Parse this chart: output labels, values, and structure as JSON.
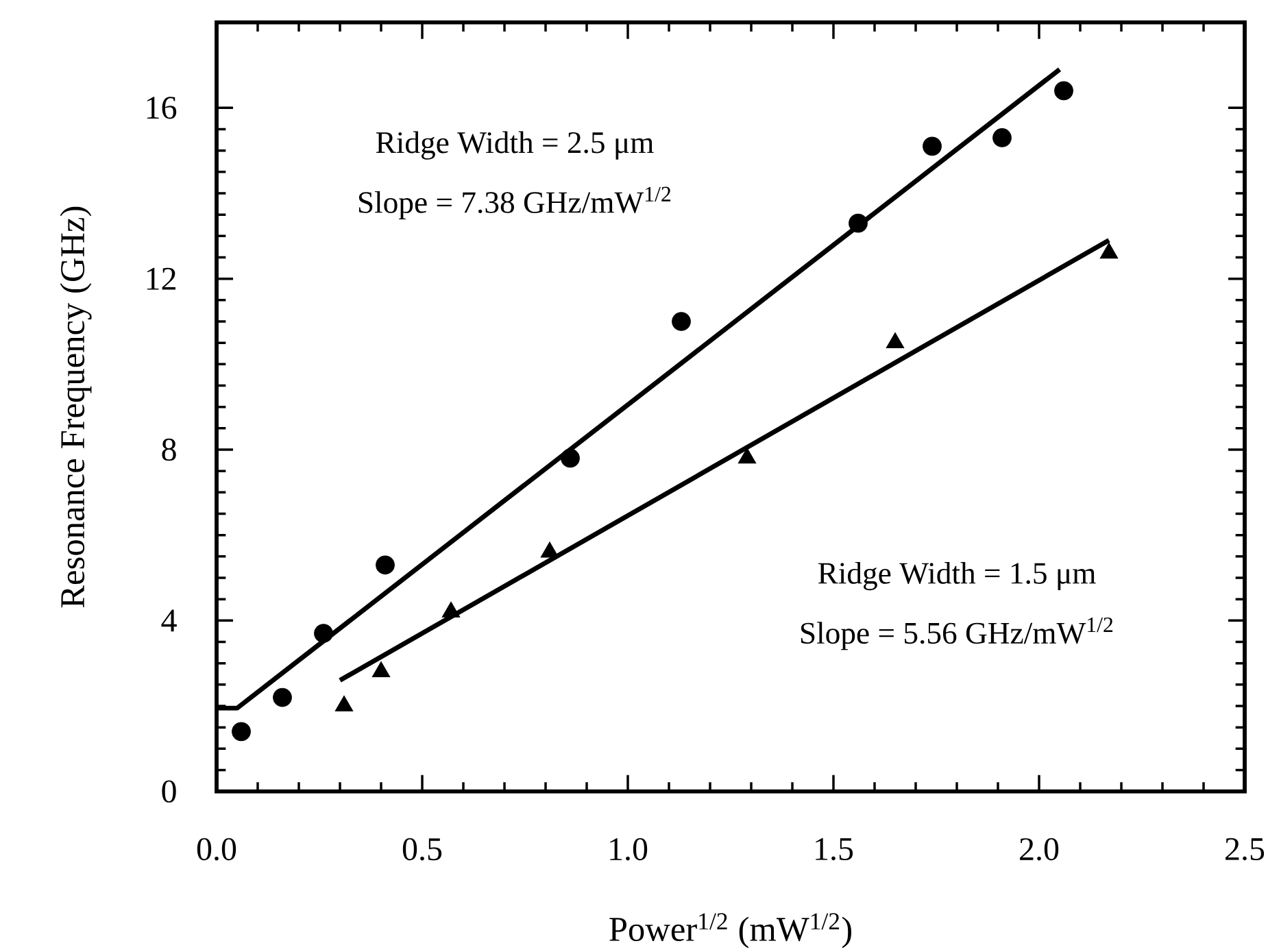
{
  "chart_data": {
    "type": "scatter",
    "xlabel": "Power$^{1/2}$ (mW$^{1/2}$)",
    "ylabel": "Resonance Frequency (GHz)",
    "xlim": [
      0,
      2.5
    ],
    "ylim": [
      0,
      18
    ],
    "xticks": [
      {
        "value": 0,
        "label": "0.0"
      },
      0.5,
      {
        "value": 1,
        "label": "1.0"
      },
      1.5,
      {
        "value": 2,
        "label": "2.0"
      },
      2.5
    ],
    "yticks": [
      0,
      4,
      8,
      12,
      16
    ],
    "grid": false,
    "annotations": [
      "Ridge Width = 2.5 μm",
      "Slope = 7.38 GHz/mW$^{1/2}$",
      "Ridge Width = 1.5 μm",
      "Slope = 5.56 GHz/mW$^{1/2}$"
    ],
    "series": [
      {
        "type": "scatter",
        "marker": "circle",
        "color": "#000000",
        "x": [
          0.06,
          0.16,
          0.26,
          0.41,
          0.86,
          1.13,
          1.56,
          1.74,
          1.91,
          2.06
        ],
        "values": [
          1.4,
          2.2,
          3.7,
          5.3,
          7.8,
          11.0,
          13.3,
          15.1,
          15.3,
          16.4
        ]
      },
      {
        "type": "scatter",
        "marker": "triangle",
        "color": "#000000",
        "x": [
          0.31,
          0.4,
          0.57,
          0.81,
          1.29,
          1.65,
          2.17
        ],
        "values": [
          2.0,
          2.8,
          4.2,
          5.6,
          7.8,
          10.5,
          12.6
        ]
      },
      {
        "type": "line",
        "marker": "none",
        "line_style": "solid",
        "color": "#000000",
        "x": [
          0,
          0.05,
          2.05
        ],
        "values": [
          1.95,
          1.95,
          16.9
        ]
      },
      {
        "type": "line",
        "marker": "none",
        "line_style": "solid",
        "color": "#000000",
        "x": [
          0.3,
          2.17
        ],
        "values": [
          2.6,
          12.9
        ]
      }
    ]
  }
}
